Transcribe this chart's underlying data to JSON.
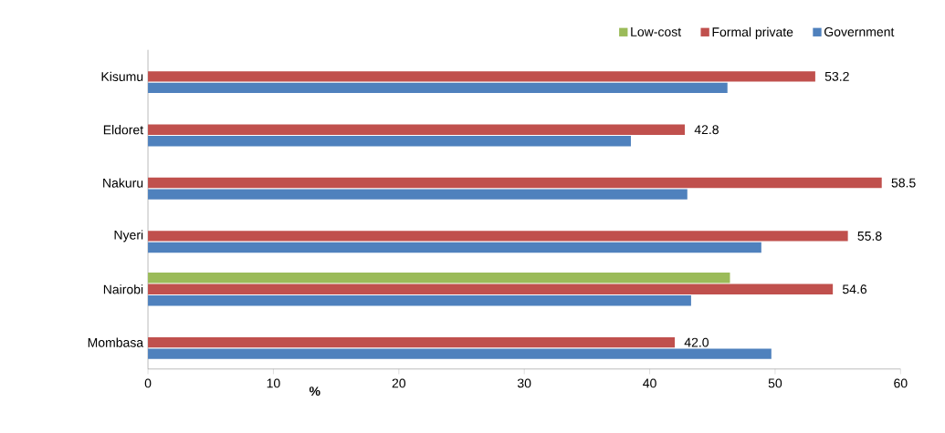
{
  "chart_data": {
    "type": "bar",
    "orientation": "horizontal",
    "xlabel": "%",
    "categories": [
      "Kisumu",
      "Eldoret",
      "Nakuru",
      "Nyeri",
      "Nairobi",
      "Mombasa"
    ],
    "series": [
      {
        "name": "Low-cost",
        "color": "#9bbb59",
        "values": [
          null,
          null,
          null,
          null,
          46.4,
          0
        ]
      },
      {
        "name": "Formal private",
        "color": "#c0504d",
        "values": [
          53.2,
          42.8,
          58.5,
          55.8,
          54.6,
          42.0
        ],
        "value_labels": [
          "53.2",
          "42.8",
          "58.5",
          "55.8",
          "54.6",
          "42.0"
        ]
      },
      {
        "name": "Government",
        "color": "#4f81bd",
        "values": [
          46.2,
          38.5,
          43.0,
          48.9,
          43.3,
          49.7
        ]
      }
    ],
    "xlim": [
      0,
      60
    ],
    "xticks": [
      0,
      10,
      20,
      30,
      40,
      50,
      60
    ],
    "legend": "top right",
    "grid": false
  }
}
